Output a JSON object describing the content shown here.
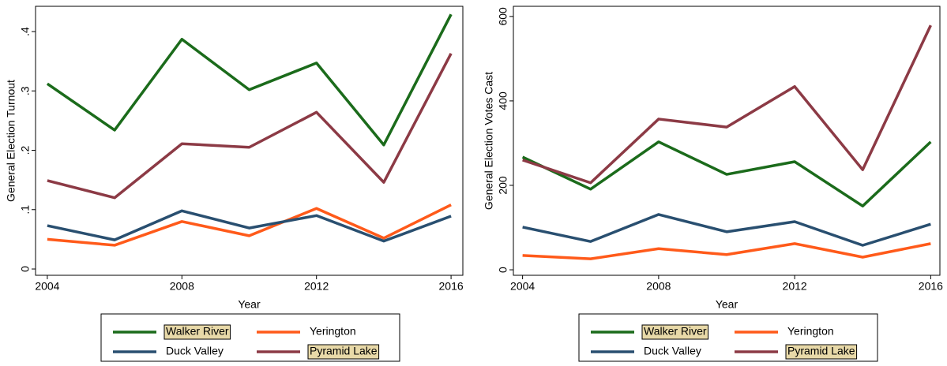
{
  "chart_data": [
    {
      "type": "line",
      "x_label": "Year",
      "y_label": "General Election Turnout",
      "x": [
        2004,
        2006,
        2008,
        2010,
        2012,
        2014,
        2016
      ],
      "xlim": [
        2003.65,
        2016.35
      ],
      "xticks": [
        2004,
        2008,
        2012,
        2016
      ],
      "ylim": [
        -0.0106,
        0.4425
      ],
      "yticks": [
        0,
        {
          "value": 0.1,
          "label": ".1"
        },
        {
          "value": 0.2,
          "label": ".2"
        },
        {
          "value": 0.3,
          "label": ".3"
        },
        {
          "value": 0.4,
          "label": ".4"
        }
      ],
      "series": [
        {
          "name": "Walker River",
          "color": "#1b6b1b",
          "values": [
            0.312,
            0.234,
            0.387,
            0.302,
            0.347,
            0.209,
            0.429
          ]
        },
        {
          "name": "Yerington",
          "color": "#ff5a1a",
          "values": [
            0.05,
            0.04,
            0.08,
            0.056,
            0.102,
            0.052,
            0.108
          ]
        },
        {
          "name": "Duck Valley",
          "color": "#294f70",
          "values": [
            0.073,
            0.049,
            0.098,
            0.069,
            0.09,
            0.047,
            0.089
          ]
        },
        {
          "name": "Pyramid Lake",
          "color": "#8c3a45",
          "values": [
            0.149,
            0.12,
            0.211,
            0.205,
            0.264,
            0.146,
            0.363
          ]
        }
      ]
    },
    {
      "type": "line",
      "x_label": "Year",
      "y_label": "General Election Votes Cast",
      "x": [
        2004,
        2006,
        2008,
        2010,
        2012,
        2014,
        2016
      ],
      "xlim": [
        2003.73,
        2016.27
      ],
      "xticks": [
        2004,
        2008,
        2012,
        2016
      ],
      "ylim": [
        -13,
        624
      ],
      "yticks": [
        0,
        200,
        400,
        600
      ],
      "series": [
        {
          "name": "Walker River",
          "color": "#1b6b1b",
          "values": [
            267,
            191,
            303,
            226,
            256,
            151,
            303
          ]
        },
        {
          "name": "Yerington",
          "color": "#ff5a1a",
          "values": [
            34,
            26,
            50,
            36,
            62,
            30,
            62
          ]
        },
        {
          "name": "Duck Valley",
          "color": "#294f70",
          "values": [
            101,
            67,
            131,
            90,
            114,
            58,
            108
          ]
        },
        {
          "name": "Pyramid Lake",
          "color": "#8c3a45",
          "values": [
            260,
            206,
            357,
            338,
            434,
            237,
            579
          ]
        }
      ]
    }
  ]
}
